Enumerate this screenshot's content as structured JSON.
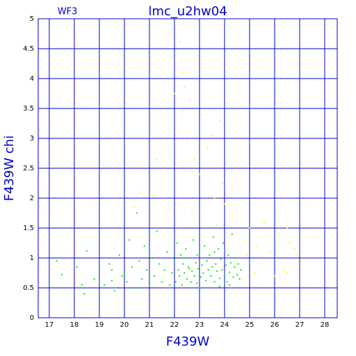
{
  "chart_data": {
    "type": "scatter",
    "title": "lmc_u2hw04",
    "subtitle": "WF3",
    "x_label": "F439W",
    "y_label": "F439W chi",
    "xlim": [
      16.56,
      28.5
    ],
    "ylim": [
      0,
      5
    ],
    "xticks": [
      17,
      18,
      19,
      20,
      21,
      22,
      23,
      24,
      25,
      26,
      27,
      28
    ],
    "yticks": [
      0,
      0.5,
      1,
      1.5,
      2,
      2.5,
      3,
      3.5,
      4,
      4.5,
      5
    ],
    "grid": true,
    "grid_color": "#0000cc",
    "series": [
      {
        "color": "#00ee00",
        "x": [
          17.3,
          17.5,
          18.1,
          18.3,
          18.4,
          18.5,
          18.8,
          19.0,
          19.2,
          19.4,
          19.5,
          19.6,
          19.8,
          19.9,
          20.1,
          20.2,
          20.3,
          20.4,
          20.5,
          20.6,
          20.7,
          20.8,
          20.9,
          21.0,
          21.1,
          21.2,
          21.3,
          21.4,
          21.5,
          21.6,
          21.7,
          21.8,
          21.9,
          22.0,
          22.05,
          22.1,
          22.15,
          22.2,
          22.25,
          22.3,
          22.35,
          22.4,
          22.45,
          22.5,
          22.55,
          22.6,
          22.65,
          22.7,
          22.75,
          22.8,
          22.85,
          22.9,
          22.95,
          23.0,
          23.05,
          23.1,
          23.15,
          23.2,
          23.25,
          23.3,
          23.35,
          23.4,
          23.45,
          23.5,
          23.55,
          23.6,
          23.65,
          23.7,
          23.75,
          23.8,
          23.85,
          23.9,
          23.95,
          24.0,
          24.05,
          24.1,
          24.15,
          24.2,
          24.25,
          24.3,
          24.35,
          24.4,
          24.45,
          24.5,
          24.55,
          24.6,
          24.65,
          22.3,
          22.9,
          23.6,
          24.2,
          23.0,
          23.8,
          22.6,
          21.0,
          19.5,
          20.0
        ],
        "values": [
          0.95,
          0.72,
          0.85,
          0.55,
          0.4,
          1.12,
          0.65,
          0.8,
          0.55,
          0.9,
          0.62,
          0.45,
          1.05,
          0.7,
          0.6,
          1.3,
          0.85,
          0.5,
          1.75,
          0.95,
          0.65,
          1.2,
          0.8,
          0.55,
          1.0,
          0.7,
          1.45,
          0.9,
          0.6,
          0.8,
          1.1,
          0.55,
          0.75,
          0.95,
          0.6,
          1.25,
          0.8,
          0.7,
          1.05,
          0.55,
          0.9,
          0.75,
          1.15,
          0.65,
          0.85,
          1.0,
          0.6,
          0.78,
          1.3,
          0.7,
          0.92,
          0.58,
          0.82,
          1.1,
          0.68,
          0.88,
          0.75,
          1.2,
          0.62,
          0.95,
          0.8,
          1.05,
          0.7,
          0.85,
          1.35,
          0.6,
          0.9,
          0.78,
          1.15,
          0.66,
          0.98,
          0.8,
          1.25,
          0.7,
          0.88,
          0.6,
          1.05,
          0.76,
          0.92,
          1.4,
          0.68,
          0.85,
          1.0,
          0.72,
          0.9,
          0.65,
          0.8,
          1.0,
          1.05,
          1.1,
          0.55,
          0.5,
          0.52,
          0.82,
          0.75,
          0.8,
          0.72
        ]
      },
      {
        "color": "#ffff00",
        "x": [
          21.8,
          22.2,
          21.9,
          22.3,
          22.4,
          22.0,
          22.6,
          22.3,
          23.1,
          23.5,
          23.8,
          22.5,
          23.3,
          22.8,
          21.3,
          22.7,
          23.0,
          25.4,
          23.9,
          24.3,
          20.6,
          21.2,
          23.6,
          24.0,
          20.4,
          21.8,
          22.7,
          24.3,
          23.7,
          25.0,
          25.6,
          26.2,
          26.5,
          25.3,
          25.8,
          26.6,
          26.9,
          25.5,
          26.1,
          26.4,
          25.2,
          26.0,
          27.1,
          26.8,
          25.7,
          24.8,
          26.5,
          24.9
        ],
        "values": [
          4.75,
          4.62,
          4.35,
          4.1,
          3.85,
          3.75,
          3.65,
          3.45,
          3.4,
          3.05,
          3.3,
          2.95,
          2.85,
          2.65,
          2.65,
          2.45,
          2.4,
          2.45,
          2.25,
          2.15,
          2.1,
          2.05,
          2.0,
          1.9,
          1.85,
          1.8,
          1.75,
          1.7,
          1.55,
          1.5,
          1.6,
          1.4,
          1.5,
          1.2,
          1.1,
          1.25,
          1.05,
          0.9,
          0.95,
          0.8,
          0.75,
          0.7,
          0.95,
          1.15,
          1.3,
          1.3,
          0.75,
          1.05
        ]
      }
    ]
  }
}
